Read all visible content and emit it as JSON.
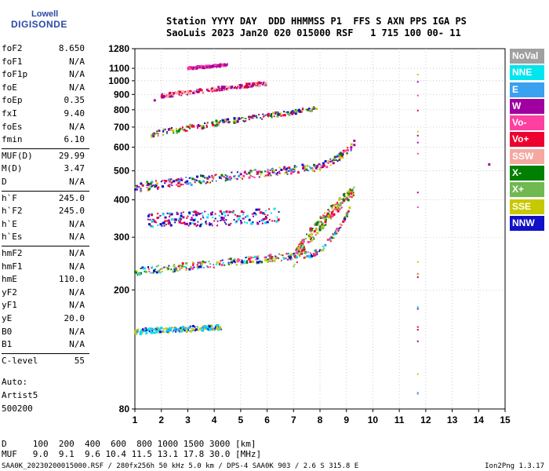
{
  "logo": {
    "line1": "Lowell",
    "line2": "DIGISONDE"
  },
  "header": {
    "line1": "Station YYYY DAY  DDD HHMMSS P1  FFS S AXN PPS IGA PS",
    "line2": "SaoLuis 2023 Jan20 020 015000 RSF   1 715 100 00- 11"
  },
  "params": {
    "group1": [
      {
        "label": "foF2",
        "value": "8.650"
      },
      {
        "label": "foF1",
        "value": "N/A"
      },
      {
        "label": "foF1p",
        "value": "N/A"
      },
      {
        "label": "foE",
        "value": "N/A"
      },
      {
        "label": "foEp",
        "value": "0.35"
      },
      {
        "label": "fxI",
        "value": "9.40"
      },
      {
        "label": "foEs",
        "value": "N/A"
      },
      {
        "label": "fmin",
        "value": "6.10"
      }
    ],
    "group2": [
      {
        "label": "MUF(D)",
        "value": "29.99"
      },
      {
        "label": "M(D)",
        "value": "3.47"
      },
      {
        "label": "D",
        "value": "N/A"
      }
    ],
    "group3": [
      {
        "label": "h`F",
        "value": "245.0"
      },
      {
        "label": "h`F2",
        "value": "245.0"
      },
      {
        "label": "h`E",
        "value": "N/A"
      },
      {
        "label": "h`Es",
        "value": "N/A"
      }
    ],
    "group4": [
      {
        "label": "hmF2",
        "value": "N/A"
      },
      {
        "label": "hmF1",
        "value": "N/A"
      },
      {
        "label": "hmE",
        "value": "110.0"
      },
      {
        "label": "yF2",
        "value": "N/A"
      },
      {
        "label": "yF1",
        "value": "N/A"
      },
      {
        "label": "yE",
        "value": "20.0"
      },
      {
        "label": "B0",
        "value": "N/A"
      },
      {
        "label": "B1",
        "value": "N/A"
      }
    ],
    "group5": [
      {
        "label": "C-level",
        "value": "55"
      }
    ]
  },
  "auto": {
    "l1": "Auto:",
    "l2": "Artist5",
    "l3": "500200"
  },
  "legend": [
    {
      "name": "NoVal",
      "color": "#a0a0a0"
    },
    {
      "name": "NNE",
      "color": "#00e5ee"
    },
    {
      "name": "E",
      "color": "#3aa0f0"
    },
    {
      "name": "W",
      "color": "#a000a0"
    },
    {
      "name": "Vo-",
      "color": "#ff40a0"
    },
    {
      "name": "Vo+",
      "color": "#ee0030"
    },
    {
      "name": "SSW",
      "color": "#f4a8a0"
    },
    {
      "name": "X-",
      "color": "#008000"
    },
    {
      "name": "X+",
      "color": "#70b850"
    },
    {
      "name": "SSE",
      "color": "#c8c800"
    },
    {
      "name": "NNW",
      "color": "#1010c8"
    }
  ],
  "muf_table": {
    "row1": "D     100  200  400  600  800 1000 1500 3000 [km]",
    "row2": "MUF   9.0  9.1  9.6 10.4 11.5 13.1 17.8 30.0 [MHz]"
  },
  "footer": {
    "left": "SAA0K_20230200015000.RSF / 280fx256h 50 kHz 5.0 km / DPS-4 SAA0K 903 / 2.6 S 315.8 E",
    "right": "Ion2Png 1.3.17"
  },
  "chart_data": {
    "type": "scatter",
    "title": "",
    "xlabel": "",
    "ylabel": "",
    "xlim": [
      1,
      15
    ],
    "ylim": [
      80,
      1280
    ],
    "y_scale": "log",
    "xticks": [
      1,
      2,
      3,
      4,
      5,
      6,
      7,
      8,
      9,
      10,
      11,
      12,
      13,
      14,
      15
    ],
    "yticks": [
      80,
      200,
      300,
      400,
      500,
      600,
      700,
      800,
      900,
      1000,
      1100,
      1280
    ],
    "grid": true,
    "legend_position": "right",
    "traces": [
      {
        "name": "F1 lower trace",
        "from": [
          1.0,
          230
        ],
        "to": [
          7.5,
          262
        ],
        "curve_to": [
          9.2,
          380
        ],
        "spread": 7,
        "colors": [
          "#1010c8",
          "#00e5ee",
          "#3aa0f0",
          "#008000",
          "#ee0030",
          "#ff40a0",
          "#70b850",
          "#c8c800"
        ]
      },
      {
        "name": "F1 cluster",
        "from": [
          7.0,
          255
        ],
        "to": [
          9.3,
          430
        ],
        "spread": 18,
        "colors": [
          "#008000",
          "#ee0030",
          "#c8c800",
          "#70b850",
          "#ff40a0"
        ]
      },
      {
        "name": "E trace",
        "from": [
          1.0,
          145
        ],
        "to": [
          4.3,
          150
        ],
        "spread": 3,
        "colors": [
          "#1010c8",
          "#3aa0f0",
          "#00e5ee",
          "#c8c800"
        ]
      },
      {
        "name": "2nd hop",
        "from": [
          1.0,
          440
        ],
        "to": [
          7.5,
          510
        ],
        "curve_to": [
          9.2,
          600
        ],
        "spread": 15,
        "colors": [
          "#1010c8",
          "#a000a0",
          "#ee0030",
          "#ff40a0",
          "#008000",
          "#c8c800",
          "#3aa0f0"
        ]
      },
      {
        "name": "3rd hop",
        "from": [
          1.5,
          660
        ],
        "to": [
          8.0,
          810
        ],
        "spread": 15,
        "colors": [
          "#1010c8",
          "#a000a0",
          "#ee0030",
          "#008000",
          "#c8c800",
          "#70b850"
        ]
      },
      {
        "name": "4th hop",
        "from": [
          2.0,
          890
        ],
        "to": [
          6.0,
          980
        ],
        "spread": 14,
        "colors": [
          "#a000a0",
          "#ee0030",
          "#f4a8a0"
        ]
      },
      {
        "name": "middle scatter",
        "from": [
          1.5,
          340
        ],
        "to": [
          6.5,
          355
        ],
        "spread": 20,
        "colors": [
          "#a000a0",
          "#1010c8",
          "#ee0030",
          "#00e5ee"
        ]
      },
      {
        "name": "upper scatter",
        "from": [
          3.0,
          1100
        ],
        "to": [
          4.5,
          1130
        ],
        "spread": 10,
        "colors": [
          "#a000a0",
          "#ff40a0"
        ]
      }
    ],
    "vertical_columns": [
      {
        "x": 11.7,
        "from": 80,
        "to": 1280,
        "colors": [
          "#a000a0",
          "#ee0030",
          "#ff40a0",
          "#00e5ee",
          "#c8c800"
        ]
      }
    ],
    "isolated_points": [
      [
        14.4,
        525
      ],
      [
        1.75,
        860
      ],
      [
        2.05,
        880
      ],
      [
        9.3,
        610
      ],
      [
        9.3,
        630
      ]
    ]
  }
}
